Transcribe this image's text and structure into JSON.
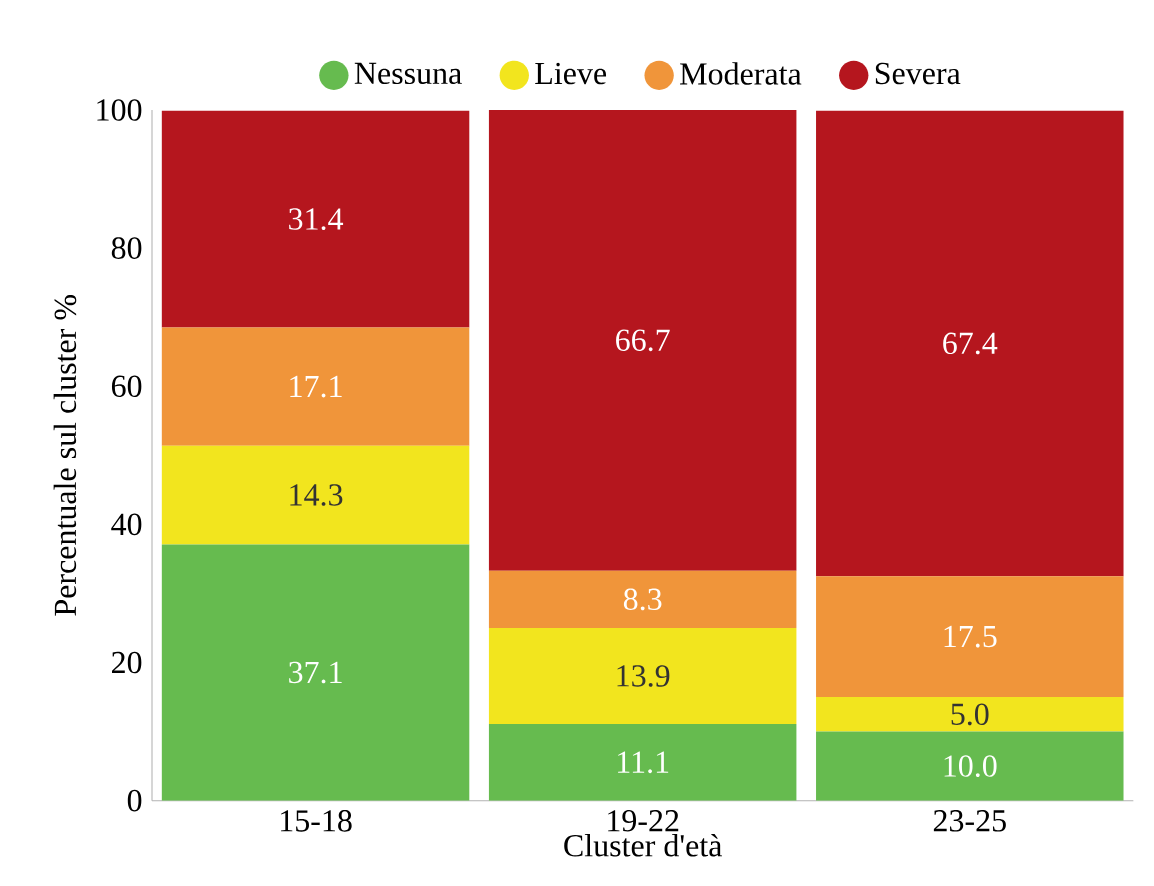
{
  "chart_data": {
    "type": "bar",
    "stacked": true,
    "xlabel": "Cluster d'età",
    "ylabel": "Percentuale sul cluster %",
    "categories": [
      "15-18",
      "19-22",
      "23-25"
    ],
    "series": [
      {
        "name": "Nessuna",
        "color": "#66bb4f",
        "values": [
          37.1,
          11.1,
          10.0
        ],
        "value_labels": [
          "37.1",
          "11.1",
          "10.0"
        ]
      },
      {
        "name": "Lieve",
        "color": "#f2e51e",
        "values": [
          14.3,
          13.9,
          5.0
        ],
        "value_labels": [
          "14.3",
          "13.9",
          "5.0"
        ]
      },
      {
        "name": "Moderata",
        "color": "#f0953a",
        "values": [
          17.1,
          8.3,
          17.5
        ],
        "value_labels": [
          "17.1",
          "8.3",
          "17.5"
        ]
      },
      {
        "name": "Severa",
        "color": "#b5161e",
        "values": [
          31.4,
          66.7,
          67.4
        ],
        "value_labels": [
          "31.4",
          "66.7",
          "67.4"
        ]
      }
    ],
    "ylim": [
      0,
      100
    ],
    "yticks": [
      0,
      20,
      40,
      60,
      80,
      100
    ],
    "legend": "top",
    "grid": false,
    "marker": "circle"
  }
}
